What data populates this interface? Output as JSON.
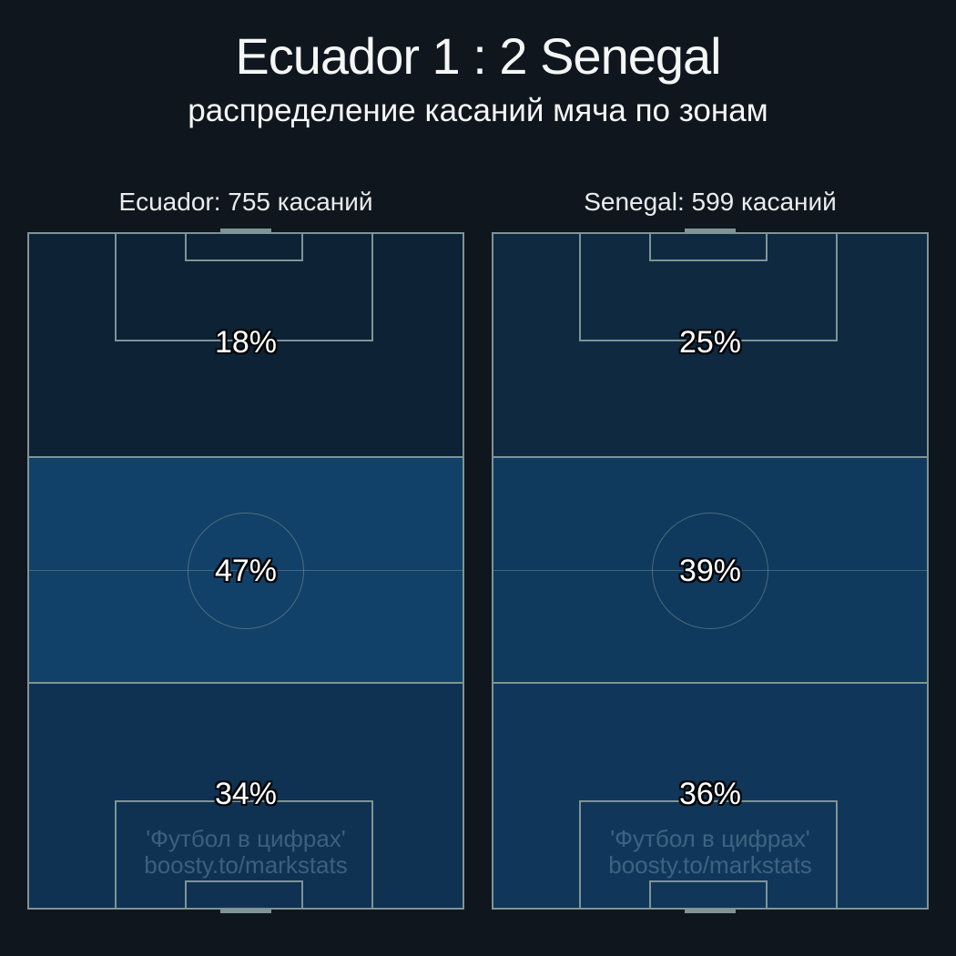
{
  "page": {
    "title": "Ecuador 1 : 2 Senegal",
    "subtitle": "распределение касаний мяча по зонам"
  },
  "watermark": {
    "line1": "'Футбол в цифрах'",
    "line2": "boosty.to/markstats"
  },
  "colors": {
    "background": "#10161e",
    "pitch_line": "#7e9496",
    "title_text": "#f5f7f7",
    "percent_text": "#ffffff",
    "watermark_text": "rgba(170,200,225,0.30)"
  },
  "chart_data": {
    "type": "heatmap",
    "title": "Ecuador 1 : 2 Senegal",
    "subtitle": "распределение касаний мяча по зонам",
    "zones": [
      "attacking third",
      "middle third",
      "defensive third"
    ],
    "legend_position": "none",
    "teams": [
      {
        "name": "Ecuador",
        "touches": 755,
        "header": "Ecuador: 755 касаний",
        "zone_pct": [
          18,
          47,
          34
        ],
        "zone_labels": [
          "18%",
          "47%",
          "34%"
        ],
        "zone_colors": [
          "#0d2235",
          "#114168",
          "#0f3253"
        ]
      },
      {
        "name": "Senegal",
        "touches": 599,
        "header": "Senegal: 599 касаний",
        "zone_pct": [
          25,
          39,
          36
        ],
        "zone_labels": [
          "25%",
          "39%",
          "36%"
        ],
        "zone_colors": [
          "#0e2940",
          "#0f3a5e",
          "#10375a"
        ]
      }
    ]
  }
}
